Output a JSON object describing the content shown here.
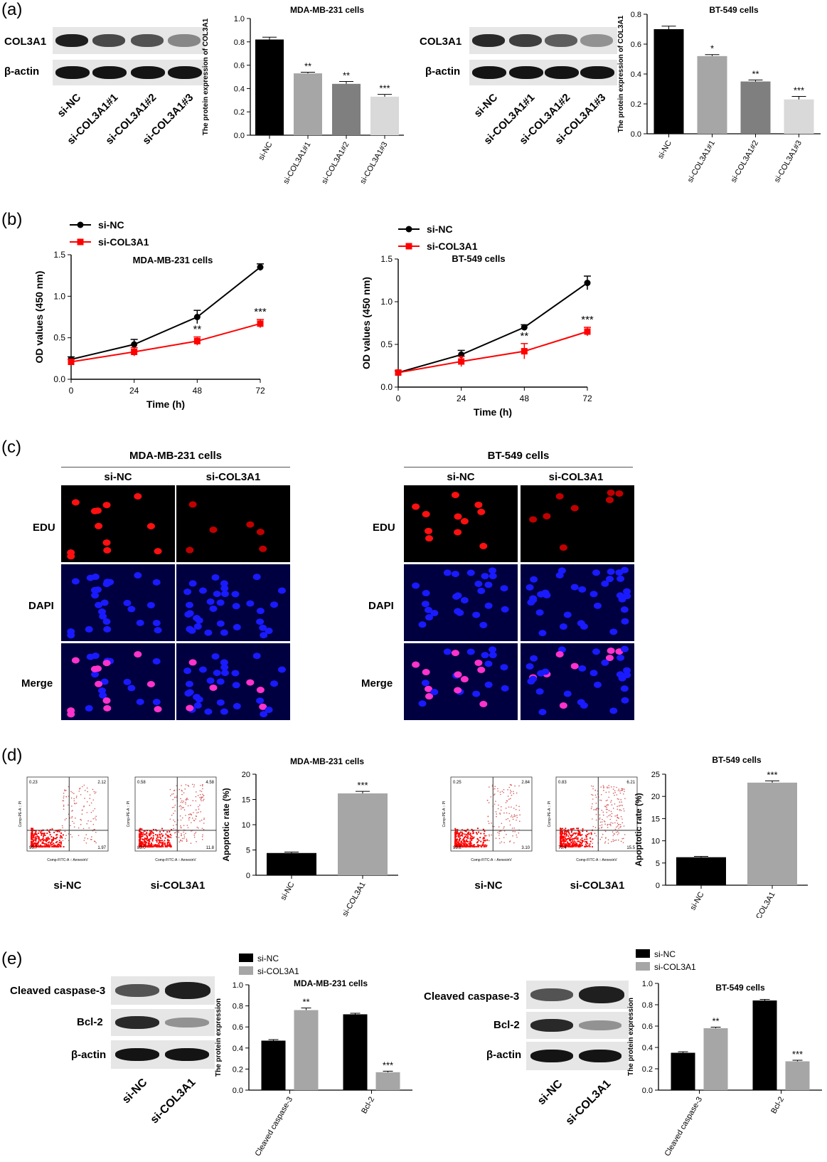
{
  "panels": {
    "a": "(a)",
    "b": "(b)",
    "c": "(c)",
    "d": "(d)",
    "e": "(e)"
  },
  "panel_a": {
    "left_blot": {
      "rows": [
        "COL3A1",
        "β-actin"
      ],
      "lanes": [
        "si-NC",
        "si-COL3A1#1",
        "si-COL3A1#2",
        "si-COL3A1#3"
      ],
      "band_intensity": {
        "COL3A1": [
          0.95,
          0.75,
          0.7,
          0.45
        ],
        "β-actin": [
          1,
          1,
          1,
          1
        ]
      }
    },
    "right_blot": {
      "rows": [
        "COL3A1",
        "β-actin"
      ],
      "lanes": [
        "si-NC",
        "si-COL3A1#1",
        "si-COL3A1#2",
        "si-COL3A1#3"
      ],
      "band_intensity": {
        "COL3A1": [
          0.9,
          0.8,
          0.65,
          0.4
        ],
        "β-actin": [
          1,
          1,
          1,
          1
        ]
      }
    }
  },
  "panel_c": {
    "left": {
      "title": "MDA-MB-231 cells",
      "cols": [
        "si-NC",
        "si-COL3A1"
      ],
      "rows": [
        "EDU",
        "DAPI",
        "Merge"
      ]
    },
    "right": {
      "title": "BT-549 cells",
      "cols": [
        "si-NC",
        "si-COL3A1"
      ],
      "rows": [
        "EDU",
        "DAPI",
        "Merge"
      ]
    }
  },
  "panel_d": {
    "left_flow": [
      {
        "label": "si-NC",
        "quadrants": [
          "0.23",
          "2.12",
          "95.7",
          "1.97"
        ]
      },
      {
        "label": "si-COL3A1",
        "quadrants": [
          "0.58",
          "4.58",
          "83.0",
          "11.8"
        ]
      }
    ],
    "right_flow": [
      {
        "label": "si-NC",
        "quadrants": [
          "0.25",
          "2.84",
          "93.8",
          "3.10"
        ]
      },
      {
        "label": "si-COL3A1",
        "quadrants": [
          "0.83",
          "6.21",
          "75.4",
          "15.5"
        ]
      }
    ],
    "flow_axes": {
      "y": "Comp-PE-A :: PI",
      "x": "Comp-FITC-A :: AnnexinV"
    }
  },
  "panel_e": {
    "left_blot": {
      "rows": [
        "Cleaved caspase-3",
        "Bcl-2",
        "β-actin"
      ],
      "lanes": [
        "si-NC",
        "si-COL3A1"
      ],
      "band_intensity": {
        "Cleaved caspase-3": [
          0.7,
          0.95
        ],
        "Bcl-2": [
          0.9,
          0.4
        ],
        "β-actin": [
          1,
          1
        ]
      }
    },
    "right_blot": {
      "rows": [
        "Cleaved caspase-3",
        "Bcl-2",
        "β-actin"
      ],
      "lanes": [
        "si-NC",
        "si-COL3A1"
      ],
      "band_intensity": {
        "Cleaved caspase-3": [
          0.7,
          0.95
        ],
        "Bcl-2": [
          0.9,
          0.4
        ],
        "β-actin": [
          1,
          1
        ]
      }
    }
  },
  "colors": {
    "black": "#000000",
    "grey1": "#a6a6a6",
    "grey2": "#7f7f7f",
    "grey3": "#d9d9d9",
    "red": "#ff0000"
  },
  "chart_data": [
    {
      "id": "a1",
      "type": "bar",
      "title": "MDA-MB-231 cells",
      "ylabel": "The protein expression of COL3A1",
      "categories": [
        "si-NC",
        "si-COL3A1#1",
        "si-COL3A1#2",
        "si-COL3A1#3"
      ],
      "values": [
        0.82,
        0.53,
        0.44,
        0.33
      ],
      "errors": [
        0.02,
        0.01,
        0.02,
        0.02
      ],
      "annotations": [
        "",
        "**",
        "**",
        "***"
      ],
      "ylim": [
        0,
        1.0
      ],
      "yticks": [
        "0.0",
        "0.2",
        "0.4",
        "0.6",
        "0.8",
        "1.0"
      ]
    },
    {
      "id": "a2",
      "type": "bar",
      "title": "BT-549 cells",
      "ylabel": "The protein expression of COL3A1",
      "categories": [
        "si-NC",
        "si-COL3A1#1",
        "si-COL3A1#2",
        "si-COL3A1#3"
      ],
      "values": [
        0.7,
        0.52,
        0.35,
        0.23
      ],
      "errors": [
        0.02,
        0.01,
        0.01,
        0.02
      ],
      "annotations": [
        "",
        "*",
        "**",
        "***"
      ],
      "ylim": [
        0,
        0.8
      ],
      "yticks": [
        "0.0",
        "0.2",
        "0.4",
        "0.6",
        "0.8"
      ]
    },
    {
      "id": "b1",
      "type": "line",
      "title": "MDA-MB-231 cells",
      "xlabel": "Time (h)",
      "ylabel": "OD values (450 nm)",
      "x": [
        0,
        24,
        48,
        72
      ],
      "ylim": [
        0,
        1.5
      ],
      "yticks": [
        "0.0",
        "0.5",
        "1.0",
        "1.5"
      ],
      "xticks": [
        "0",
        "24",
        "48",
        "72"
      ],
      "series": [
        {
          "name": "si-NC",
          "values": [
            0.24,
            0.42,
            0.75,
            1.35
          ],
          "errors": [
            0.03,
            0.06,
            0.08,
            0.04
          ]
        },
        {
          "name": "si-COL3A1",
          "values": [
            0.21,
            0.33,
            0.46,
            0.67
          ],
          "errors": [
            0.03,
            0.05,
            0.05,
            0.05
          ]
        }
      ],
      "annotations": [
        {
          "x": 48,
          "text": "**"
        },
        {
          "x": 72,
          "text": "***"
        }
      ]
    },
    {
      "id": "b2",
      "type": "line",
      "title": "BT-549 cells",
      "xlabel": "Time (h)",
      "ylabel": "OD values (450 nm)",
      "x": [
        0,
        24,
        48,
        72
      ],
      "ylim": [
        0,
        1.5
      ],
      "yticks": [
        "0.0",
        "0.5",
        "1.0",
        "1.5"
      ],
      "xticks": [
        "0",
        "24",
        "48",
        "72"
      ],
      "series": [
        {
          "name": "si-NC",
          "values": [
            0.17,
            0.38,
            0.7,
            1.22
          ],
          "errors": [
            0.02,
            0.05,
            0.03,
            0.08
          ]
        },
        {
          "name": "si-COL3A1",
          "values": [
            0.17,
            0.3,
            0.42,
            0.65
          ],
          "errors": [
            0.02,
            0.06,
            0.09,
            0.05
          ]
        }
      ],
      "annotations": [
        {
          "x": 48,
          "text": "**"
        },
        {
          "x": 72,
          "text": "***"
        }
      ]
    },
    {
      "id": "d1",
      "type": "bar",
      "title": "MDA-MB-231 cells",
      "ylabel": "Apoptotic rate (%)",
      "categories": [
        "si-NC",
        "si-COL3A1"
      ],
      "values": [
        4.4,
        16.2
      ],
      "errors": [
        0.2,
        0.4
      ],
      "annotations": [
        "",
        "***"
      ],
      "ylim": [
        0,
        20
      ],
      "yticks": [
        "0",
        "5",
        "10",
        "15",
        "20"
      ]
    },
    {
      "id": "d2",
      "type": "bar",
      "title": "BT-549 cells",
      "ylabel": "Apoptotic rate (%)",
      "categories": [
        "si-NC",
        "si-COL3A1"
      ],
      "values": [
        6.3,
        23.1
      ],
      "errors": [
        0.2,
        0.4
      ],
      "annotations": [
        "",
        "***"
      ],
      "ylim": [
        0,
        25
      ],
      "yticks": [
        "0",
        "5",
        "10",
        "15",
        "20",
        "25"
      ]
    },
    {
      "id": "e1",
      "type": "bar",
      "title": "MDA-MB-231 cells",
      "ylabel": "The protein expression",
      "categories": [
        "Cleaved caspase-3",
        "Bcl-2"
      ],
      "series": [
        {
          "name": "si-NC",
          "values": [
            0.47,
            0.72
          ],
          "errors": [
            0.01,
            0.01
          ]
        },
        {
          "name": "si-COL3A1",
          "values": [
            0.76,
            0.17
          ],
          "errors": [
            0.02,
            0.01
          ]
        }
      ],
      "annotations": [
        [
          "",
          "**"
        ],
        [
          "",
          "***"
        ]
      ],
      "ylim": [
        0,
        1.0
      ],
      "yticks": [
        "0.0",
        "0.2",
        "0.4",
        "0.6",
        "0.8",
        "1.0"
      ]
    },
    {
      "id": "e2",
      "type": "bar",
      "title": "BT-549 cells",
      "ylabel": "The protein expression",
      "categories": [
        "Cleaved caspase-3",
        "Bcl-2"
      ],
      "series": [
        {
          "name": "si-NC",
          "values": [
            0.35,
            0.84
          ],
          "errors": [
            0.01,
            0.01
          ]
        },
        {
          "name": "si-COL3A1",
          "values": [
            0.58,
            0.27
          ],
          "errors": [
            0.01,
            0.01
          ]
        }
      ],
      "annotations": [
        [
          "",
          "**"
        ],
        [
          "",
          "***"
        ]
      ],
      "ylim": [
        0,
        1.0
      ],
      "yticks": [
        "0.0",
        "0.2",
        "0.4",
        "0.6",
        "0.8",
        "1.0"
      ]
    }
  ]
}
